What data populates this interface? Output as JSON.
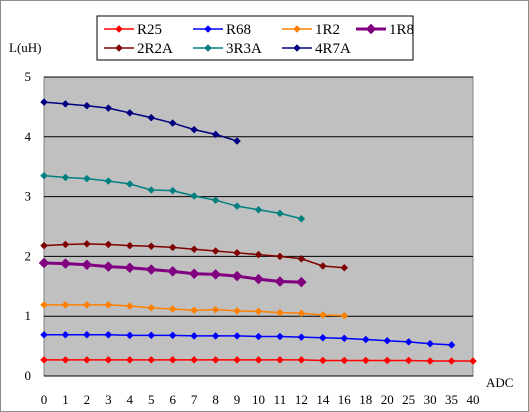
{
  "chart_data": {
    "type": "line",
    "title": "",
    "xlabel": "ADC",
    "ylabel": "L(uH)",
    "x": [
      0,
      1,
      2,
      3,
      4,
      5,
      6,
      7,
      8,
      9,
      10,
      11,
      12,
      13,
      14,
      15,
      16,
      17,
      18,
      19,
      20
    ],
    "x_tick_labels": [
      "0",
      "1",
      "2",
      "3",
      "4",
      "5",
      "6",
      "7",
      "8",
      "9",
      "10",
      "11",
      "12",
      "14",
      "16",
      "18",
      "20",
      "25",
      "30",
      "35",
      "40"
    ],
    "y_ticks": [
      0,
      1,
      2,
      3,
      4,
      5
    ],
    "ylim": [
      0,
      5
    ],
    "grid": "horizontal",
    "background": "#c0c0c0",
    "legend_position": "top",
    "series": [
      {
        "name": "R25",
        "color": "#ff0000",
        "marker": "diamond",
        "x": [
          0,
          1,
          2,
          3,
          4,
          5,
          6,
          7,
          8,
          9,
          10,
          11,
          12,
          13,
          14,
          15,
          16,
          17,
          18,
          19,
          20
        ],
        "values": [
          0.27,
          0.27,
          0.27,
          0.27,
          0.27,
          0.27,
          0.27,
          0.27,
          0.27,
          0.27,
          0.27,
          0.27,
          0.27,
          0.26,
          0.26,
          0.26,
          0.26,
          0.26,
          0.25,
          0.25,
          0.25
        ]
      },
      {
        "name": "R68",
        "color": "#0000ff",
        "marker": "diamond",
        "x": [
          0,
          1,
          2,
          3,
          4,
          5,
          6,
          7,
          8,
          9,
          10,
          11,
          12,
          13,
          14,
          15,
          16,
          17,
          18,
          19
        ],
        "values": [
          0.69,
          0.69,
          0.69,
          0.69,
          0.68,
          0.68,
          0.68,
          0.67,
          0.67,
          0.67,
          0.66,
          0.66,
          0.65,
          0.64,
          0.63,
          0.61,
          0.59,
          0.57,
          0.54,
          0.52
        ]
      },
      {
        "name": "1R2",
        "color": "#ff8000",
        "marker": "diamond",
        "x": [
          0,
          1,
          2,
          3,
          4,
          5,
          6,
          7,
          8,
          9,
          10,
          11,
          12,
          13,
          14
        ],
        "values": [
          1.19,
          1.19,
          1.19,
          1.19,
          1.17,
          1.14,
          1.12,
          1.1,
          1.11,
          1.09,
          1.08,
          1.06,
          1.05,
          1.02,
          1.01
        ]
      },
      {
        "name": "1R8",
        "color": "#800080",
        "marker": "diamond-large",
        "x": [
          0,
          1,
          2,
          3,
          4,
          5,
          6,
          7,
          8,
          9,
          10,
          11,
          12
        ],
        "values": [
          1.89,
          1.88,
          1.86,
          1.83,
          1.81,
          1.78,
          1.75,
          1.71,
          1.7,
          1.67,
          1.62,
          1.58,
          1.57
        ]
      },
      {
        "name": "2R2A",
        "color": "#800000",
        "marker": "diamond",
        "x": [
          0,
          1,
          2,
          3,
          4,
          5,
          6,
          7,
          8,
          9,
          10,
          11,
          12,
          13,
          14
        ],
        "values": [
          2.18,
          2.2,
          2.21,
          2.2,
          2.18,
          2.17,
          2.15,
          2.12,
          2.09,
          2.06,
          2.03,
          2.0,
          1.96,
          1.84,
          1.81
        ]
      },
      {
        "name": "3R3A",
        "color": "#008080",
        "marker": "diamond",
        "x": [
          0,
          1,
          2,
          3,
          4,
          5,
          6,
          7,
          8,
          9,
          10,
          11,
          12
        ],
        "values": [
          3.35,
          3.32,
          3.3,
          3.26,
          3.21,
          3.11,
          3.1,
          3.01,
          2.94,
          2.84,
          2.78,
          2.72,
          2.63
        ]
      },
      {
        "name": "4R7A",
        "color": "#000080",
        "marker": "diamond",
        "x": [
          0,
          1,
          2,
          3,
          4,
          5,
          6,
          7,
          8,
          9
        ],
        "values": [
          4.58,
          4.55,
          4.52,
          4.48,
          4.4,
          4.32,
          4.23,
          4.12,
          4.04,
          3.93
        ]
      }
    ]
  }
}
